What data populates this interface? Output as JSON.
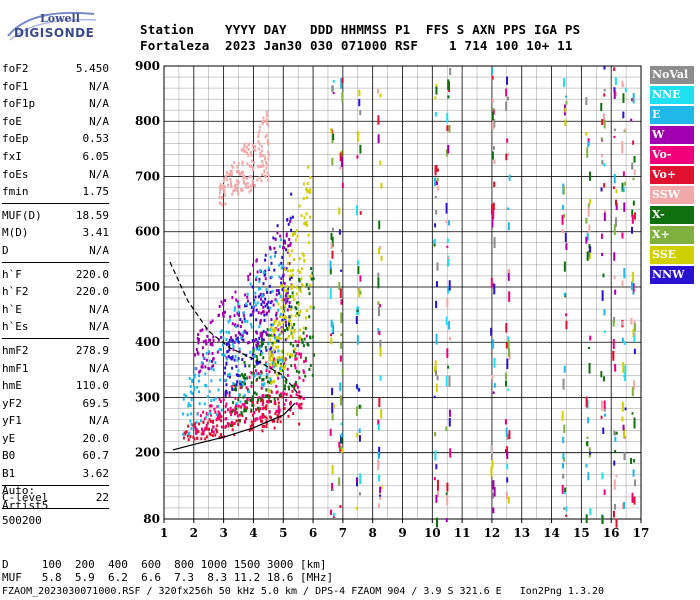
{
  "logo": {
    "line1": "Lowell",
    "line2": "DIGISONDE"
  },
  "header": {
    "line1": "Station    YYYY DAY   DDD HHMMSS P1  FFS S AXN PPS IGA PS",
    "line2": "Fortaleza  2023 Jan30 030 071000 RSF    1 714 100 10+ 11"
  },
  "parameter_groups": [
    [
      {
        "name": "foF2",
        "value": "5.450"
      },
      {
        "name": "foF1",
        "value": "N/A"
      },
      {
        "name": "foF1p",
        "value": "N/A"
      },
      {
        "name": "foE",
        "value": "N/A"
      },
      {
        "name": "foEp",
        "value": "0.53"
      },
      {
        "name": "fxI",
        "value": "6.05"
      },
      {
        "name": "foEs",
        "value": "N/A"
      },
      {
        "name": "fmin",
        "value": "1.75"
      }
    ],
    [
      {
        "name": "MUF(D)",
        "value": "18.59"
      },
      {
        "name": "M(D)",
        "value": "3.41"
      },
      {
        "name": "D",
        "value": "N/A"
      }
    ],
    [
      {
        "name": "h`F",
        "value": "220.0"
      },
      {
        "name": "h`F2",
        "value": "220.0"
      },
      {
        "name": "h`E",
        "value": "N/A"
      },
      {
        "name": "h`Es",
        "value": "N/A"
      }
    ],
    [
      {
        "name": "hmF2",
        "value": "278.9"
      },
      {
        "name": "hmF1",
        "value": "N/A"
      },
      {
        "name": "hmE",
        "value": "110.0"
      },
      {
        "name": "yF2",
        "value": "69.5"
      },
      {
        "name": "yF1",
        "value": "N/A"
      },
      {
        "name": "yE",
        "value": "20.0"
      },
      {
        "name": "B0",
        "value": "60.7"
      },
      {
        "name": "B1",
        "value": "3.62"
      }
    ],
    [
      {
        "name": "C-level",
        "value": "22"
      }
    ]
  ],
  "notes": [
    "Auto:",
    "Artist5",
    "500200"
  ],
  "bottom": {
    "distance_line": "D     100  200  400  600  800 1000 1500 3000 [km]",
    "muf_line": "MUF   5.8  5.9  6.2  6.6  7.3  8.3 11.2 18.6 [MHz]",
    "footer": "FZAOM_2023030071000.RSF / 320fx256h 50 kHz 5.0 km / DPS-4 FZAOM 904 / 3.9 S 321.6 E   Ion2Png 1.3.20"
  },
  "chart_data": {
    "type": "scatter",
    "title": "",
    "xlabel": "",
    "ylabel": "",
    "xlim": [
      1,
      17
    ],
    "ylim": [
      80,
      900
    ],
    "x_ticks": [
      1,
      2,
      3,
      4,
      5,
      6,
      7,
      8,
      9,
      10,
      11,
      12,
      13,
      14,
      15,
      16,
      17
    ],
    "y_ticks": [
      80,
      200,
      300,
      400,
      500,
      600,
      700,
      800,
      900
    ],
    "grid": true,
    "legend_placement": "right",
    "legend": [
      {
        "label": "NoVal",
        "color": "#8c8c8c"
      },
      {
        "label": "NNE",
        "color": "#1ee0f0"
      },
      {
        "label": "E",
        "color": "#20b8e8"
      },
      {
        "label": "W",
        "color": "#a000b0"
      },
      {
        "label": "Vo-",
        "color": "#f0007a"
      },
      {
        "label": "Vo+",
        "color": "#e01030"
      },
      {
        "label": "SSW",
        "color": "#f0a8a8"
      },
      {
        "label": "X-",
        "color": "#107010"
      },
      {
        "label": "X+",
        "color": "#80b040"
      },
      {
        "label": "SSE",
        "color": "#d0d000"
      },
      {
        "label": "NNW",
        "color": "#2a10d0"
      }
    ],
    "traces": [
      {
        "name": "profile",
        "style": "solid",
        "points": [
          [
            1.3,
            205
          ],
          [
            2,
            215
          ],
          [
            3,
            228
          ],
          [
            4,
            245
          ],
          [
            5,
            268
          ],
          [
            5.4,
            290
          ]
        ]
      },
      {
        "name": "virtual_extrap",
        "style": "dashed",
        "points": [
          [
            1.2,
            545
          ],
          [
            1.8,
            475
          ],
          [
            2.5,
            420
          ],
          [
            3.2,
            390
          ],
          [
            4,
            370
          ],
          [
            5,
            340
          ],
          [
            5.6,
            300
          ]
        ]
      }
    ],
    "echo_regions": [
      {
        "color_label": "Vo+",
        "color": "#e01030",
        "x": [
          1.6,
          5.6
        ],
        "y": [
          220,
          330
        ]
      },
      {
        "color_label": "Vo-",
        "color": "#f0007a",
        "x": [
          2.0,
          5.8
        ],
        "y": [
          230,
          420
        ]
      },
      {
        "color_label": "NNW",
        "color": "#2a10d0",
        "x": [
          3.0,
          5.3
        ],
        "y": [
          300,
          690
        ]
      },
      {
        "color_label": "W",
        "color": "#a000b0",
        "x": [
          2.0,
          5.3
        ],
        "y": [
          340,
          640
        ]
      },
      {
        "color_label": "X-",
        "color": "#107010",
        "x": [
          3.2,
          6.0
        ],
        "y": [
          250,
          560
        ]
      },
      {
        "color_label": "SSE",
        "color": "#d0d000",
        "x": [
          4.5,
          5.9
        ],
        "y": [
          300,
          760
        ]
      },
      {
        "color_label": "E",
        "color": "#20b8e8",
        "x": [
          1.6,
          5.0
        ],
        "y": [
          230,
          600
        ]
      },
      {
        "color_label": "SSW",
        "color": "#f0a8a8",
        "x": [
          2.8,
          4.5
        ],
        "y": [
          640,
          830
        ]
      }
    ],
    "interference_lines": [
      6.6,
      6.9,
      7.5,
      8.2,
      10.1,
      10.5,
      12.0,
      12.5,
      14.4,
      15.2,
      15.7,
      16.1,
      16.4,
      16.7
    ]
  }
}
